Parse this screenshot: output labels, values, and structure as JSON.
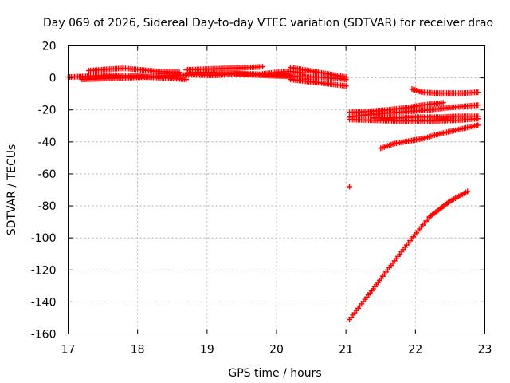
{
  "chart_data": {
    "type": "scatter",
    "title": "Day 069 of 2026, Sidereal Day-to-day VTEC variation (SDTVAR) for receiver drao",
    "xlabel": "GPS time / hours",
    "ylabel": "SDTVAR / TECUs",
    "xlim": [
      17,
      23
    ],
    "ylim": [
      -160,
      20
    ],
    "xticks": [
      "17",
      "18",
      "19",
      "20",
      "21",
      "22",
      "23"
    ],
    "yticks": [
      "20",
      "0",
      "-20",
      "-40",
      "-60",
      "-80",
      "-100",
      "-120",
      "-140",
      "-160"
    ],
    "grid": true,
    "marker": "plus",
    "color": "#ff0000",
    "series": [
      {
        "x": [
          17.0,
          17.3,
          17.6,
          17.9,
          18.2,
          18.5,
          18.8,
          19.1,
          19.4,
          19.7,
          20.0,
          20.3,
          20.6,
          20.9,
          21.0
        ],
        "y": [
          0.5,
          1.0,
          1.8,
          1.2,
          0.8,
          1.5,
          2.0,
          1.5,
          2.5,
          1.8,
          1.2,
          0.8,
          0.5,
          -0.5,
          -1.0
        ]
      },
      {
        "x": [
          17.3,
          17.6,
          17.8,
          18.0,
          18.3,
          18.6
        ],
        "y": [
          4.5,
          5.5,
          6.0,
          5.2,
          4.0,
          3.5
        ]
      },
      {
        "x": [
          17.2,
          17.5,
          17.8,
          18.1,
          18.4,
          18.7
        ],
        "y": [
          -1.0,
          -0.5,
          0.0,
          0.5,
          0.0,
          -1.0
        ]
      },
      {
        "x": [
          18.7,
          19.0,
          19.3,
          19.6,
          19.8
        ],
        "y": [
          5.0,
          5.5,
          6.0,
          6.5,
          7.0
        ]
      },
      {
        "x": [
          18.7,
          19.0,
          19.3,
          19.6,
          19.9,
          20.2
        ],
        "y": [
          3.0,
          3.5,
          3.0,
          2.5,
          2.0,
          1.5
        ]
      },
      {
        "x": [
          19.8,
          20.0,
          20.2,
          20.4
        ],
        "y": [
          2.5,
          3.5,
          4.0,
          3.0
        ]
      },
      {
        "x": [
          20.2,
          20.4,
          20.6,
          20.8,
          21.0
        ],
        "y": [
          6.5,
          5.0,
          3.5,
          2.0,
          0.5
        ]
      },
      {
        "x": [
          20.2,
          20.4,
          20.6,
          20.8,
          21.0
        ],
        "y": [
          -1.0,
          -2.0,
          -3.0,
          -4.0,
          -5.0
        ]
      },
      {
        "x": [
          21.05,
          21.3,
          21.6,
          21.9,
          22.1,
          22.4
        ],
        "y": [
          -21.5,
          -21.0,
          -20.0,
          -18.5,
          -17.0,
          -15.5
        ]
      },
      {
        "x": [
          21.05,
          21.3,
          21.6,
          21.9,
          22.2,
          22.5,
          22.9
        ],
        "y": [
          -24.5,
          -23.0,
          -22.0,
          -21.0,
          -20.0,
          -18.5,
          -17.0
        ]
      },
      {
        "x": [
          21.05,
          21.4,
          21.8,
          22.2,
          22.6,
          22.9
        ],
        "y": [
          -26.0,
          -26.5,
          -27.0,
          -27.0,
          -26.5,
          -25.5
        ]
      },
      {
        "x": [
          21.4,
          21.6,
          21.8,
          22.0,
          22.2,
          22.4,
          22.6,
          22.9
        ],
        "y": [
          -25.0,
          -25.0,
          -25.0,
          -24.5,
          -24.5,
          -24.5,
          -24.0,
          -24.0
        ]
      },
      {
        "x": [
          21.5,
          21.7,
          21.9,
          22.1,
          22.3,
          22.5,
          22.7,
          22.9
        ],
        "y": [
          -44.0,
          -41.0,
          -39.5,
          -38.0,
          -35.5,
          -33.5,
          -31.5,
          -29.5
        ]
      },
      {
        "x": [
          21.95,
          22.1,
          22.3,
          22.5,
          22.7,
          22.9
        ],
        "y": [
          -7.0,
          -9.0,
          -9.5,
          -9.5,
          -9.5,
          -9.0
        ]
      },
      {
        "x": [
          21.05
        ],
        "y": [
          -68.0
        ]
      },
      {
        "x": [
          21.05,
          21.3,
          21.6,
          21.9,
          22.2,
          22.5,
          22.75
        ],
        "y": [
          -151.0,
          -137.0,
          -120.0,
          -103.0,
          -87.0,
          -77.0,
          -71.0
        ]
      }
    ]
  }
}
